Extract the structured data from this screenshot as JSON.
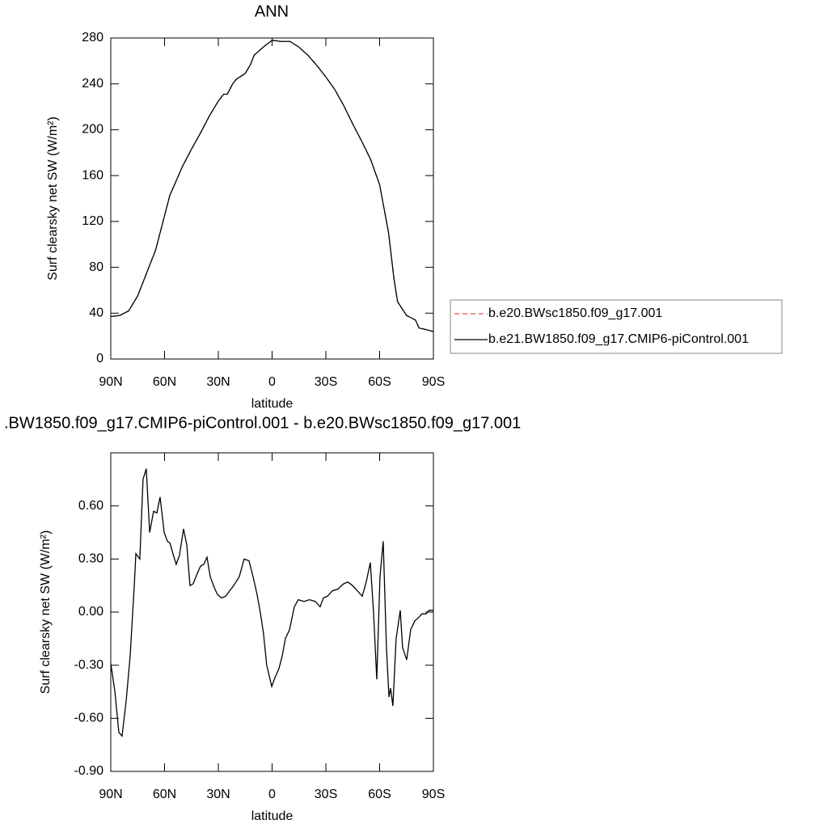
{
  "chart_data": [
    {
      "type": "line",
      "title": "ANN",
      "xlabel": "latitude",
      "ylabel": "Surf clearsky net SW (W/m²)",
      "x": [
        90,
        85,
        80,
        75,
        70,
        65,
        60,
        57,
        55,
        50,
        45,
        40,
        35,
        30,
        27,
        25,
        22,
        20,
        15,
        12,
        10,
        5,
        0,
        -5,
        -10,
        -15,
        -20,
        -25,
        -30,
        -35,
        -40,
        -45,
        -50,
        -55,
        -60,
        -65,
        -68,
        -70,
        -75,
        -80,
        -82,
        -85,
        -90
      ],
      "series": [
        {
          "name": "b.e20.BWsc1850.f09_g17.001",
          "color": "#f05050",
          "line_style": "dashed",
          "values": [
            37,
            38,
            42,
            55,
            75,
            95,
            125,
            143,
            150,
            168,
            183,
            197,
            212,
            225,
            231,
            231,
            240,
            244,
            249,
            257,
            265,
            272,
            278,
            277,
            277,
            272,
            265,
            256,
            246,
            235,
            221,
            205,
            190,
            174,
            152,
            110,
            70,
            50,
            38,
            34,
            27,
            26,
            24
          ]
        },
        {
          "name": "b.e21.BW1850.f09_g17.CMIP6-piControl.001",
          "color": "#000000",
          "line_style": "solid",
          "values": [
            37,
            38,
            42,
            55,
            75,
            95,
            125,
            143,
            150,
            168,
            183,
            197,
            212,
            225,
            231,
            231,
            240,
            244,
            249,
            257,
            265,
            272,
            278,
            277,
            277,
            272,
            265,
            256,
            246,
            235,
            221,
            205,
            190,
            174,
            152,
            110,
            70,
            50,
            38,
            34,
            27,
            26,
            24
          ]
        }
      ],
      "xlim": [
        90,
        -90
      ],
      "xticks": [
        {
          "value": 90,
          "label": "90N"
        },
        {
          "value": 60,
          "label": "60N"
        },
        {
          "value": 30,
          "label": "30N"
        },
        0,
        {
          "value": -30,
          "label": "30S"
        },
        {
          "value": -60,
          "label": "60S"
        },
        {
          "value": -90,
          "label": "90S"
        }
      ],
      "ylim": [
        0,
        280
      ],
      "yticks": [
        0,
        40,
        80,
        120,
        160,
        200,
        240,
        280
      ],
      "legend": "right"
    },
    {
      "type": "line",
      "title": ".BW1850.f09_g17.CMIP6-piControl.001 - b.e20.BWsc1850.f09_g17.001",
      "xlabel": "latitude",
      "ylabel": "Surf clearsky net SW (W/m²)",
      "x": [
        90,
        87.7,
        85.5,
        83.7,
        81.4,
        79.2,
        76.9,
        76,
        73.8,
        72,
        70.2,
        68.3,
        66.1,
        64.3,
        62.5,
        60.2,
        58.4,
        57,
        55.3,
        53.5,
        51.7,
        49.4,
        47.6,
        45.8,
        44,
        41.7,
        39.9,
        38.1,
        36.3,
        34.5,
        32.3,
        30.5,
        28.2,
        25.9,
        23.7,
        21.4,
        18.3,
        15.6,
        12.9,
        10.6,
        8.4,
        6.6,
        4.8,
        3,
        0.2,
        -1.6,
        -3.8,
        -5.6,
        -7.4,
        -9.7,
        -12.4,
        -14.6,
        -17.8,
        -20.9,
        -24.1,
        -26.8,
        -28.6,
        -30.9,
        -33.6,
        -36.7,
        -39.9,
        -42.2,
        -44.9,
        -47.6,
        -50.3,
        -52.5,
        -54.8,
        -56.6,
        -58.4,
        -60.2,
        -62,
        -63.8,
        -65.2,
        -66.1,
        -67.4,
        -69.2,
        -71.5,
        -72.8,
        -75.1,
        -77.3,
        -79.6,
        -81.8,
        -83.6,
        -85.9,
        -87.7,
        -90
      ],
      "series": [
        {
          "color": "#000000",
          "line_style": "solid",
          "values": [
            -0.29,
            -0.45,
            -0.68,
            -0.7,
            -0.5,
            -0.25,
            0.15,
            0.33,
            0.3,
            0.75,
            0.81,
            0.45,
            0.57,
            0.56,
            0.65,
            0.45,
            0.4,
            0.39,
            0.33,
            0.27,
            0.32,
            0.47,
            0.38,
            0.15,
            0.16,
            0.22,
            0.26,
            0.27,
            0.31,
            0.2,
            0.14,
            0.1,
            0.08,
            0.09,
            0.12,
            0.15,
            0.2,
            0.3,
            0.29,
            0.2,
            0.1,
            0.0,
            -0.12,
            -0.3,
            -0.42,
            -0.37,
            -0.32,
            -0.25,
            -0.15,
            -0.1,
            0.03,
            0.07,
            0.06,
            0.07,
            0.06,
            0.03,
            0.08,
            0.09,
            0.12,
            0.13,
            0.16,
            0.17,
            0.15,
            0.12,
            0.09,
            0.17,
            0.28,
            0.0,
            -0.38,
            0.2,
            0.4,
            -0.2,
            -0.48,
            -0.43,
            -0.53,
            -0.15,
            0.01,
            -0.2,
            -0.27,
            -0.1,
            -0.05,
            -0.03,
            -0.01,
            -0.01,
            0.01,
            0.01
          ]
        }
      ],
      "xlim": [
        90,
        -90
      ],
      "xticks": [
        {
          "value": 90,
          "label": "90N"
        },
        {
          "value": 60,
          "label": "60N"
        },
        {
          "value": 30,
          "label": "30N"
        },
        0,
        {
          "value": -30,
          "label": "30S"
        },
        {
          "value": -60,
          "label": "60S"
        },
        {
          "value": -90,
          "label": "90S"
        }
      ],
      "ylim": [
        -0.9,
        0.9
      ],
      "yticks": [
        {
          "value": -0.9,
          "label": "-0.90"
        },
        {
          "value": -0.6,
          "label": "-0.60"
        },
        {
          "value": -0.3,
          "label": "-0.30"
        },
        {
          "value": 0,
          "label": "0.00"
        },
        {
          "value": 0.3,
          "label": "0.30"
        },
        {
          "value": 0.6,
          "label": "0.60"
        }
      ]
    }
  ]
}
